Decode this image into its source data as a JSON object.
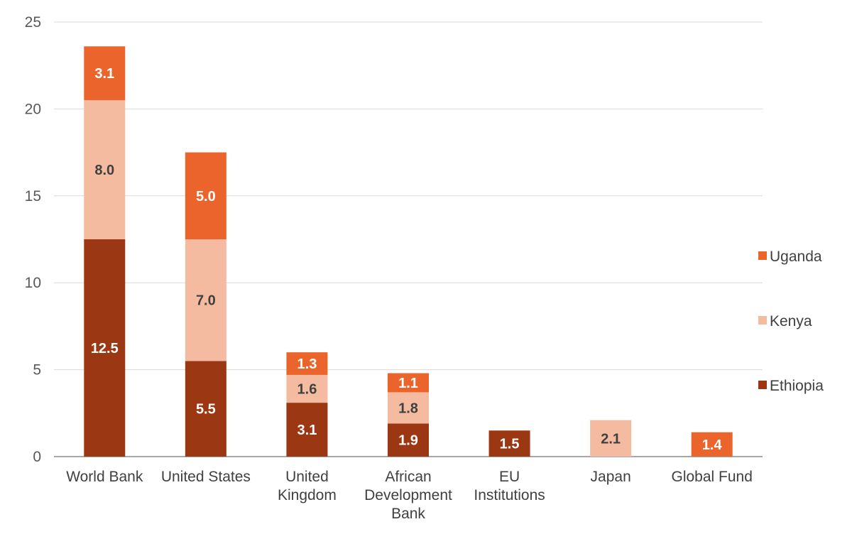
{
  "chart_data": {
    "type": "bar",
    "stacked": true,
    "title": "",
    "xlabel": "",
    "ylabel": "",
    "ylim": [
      0,
      25
    ],
    "yticks": [
      0,
      5,
      10,
      15,
      20,
      25
    ],
    "grid": true,
    "legend_position": "right",
    "categories": [
      [
        "World Bank"
      ],
      [
        "United States"
      ],
      [
        "United",
        "Kingdom"
      ],
      [
        "African",
        "Development",
        "Bank"
      ],
      [
        "EU",
        "Institutions"
      ],
      [
        "Japan"
      ],
      [
        "Global Fund"
      ]
    ],
    "series": [
      {
        "name": "Ethiopia",
        "color": "#9C3713",
        "label_color": "#ffffff",
        "values": [
          12.5,
          5.5,
          3.1,
          1.9,
          1.5,
          null,
          null
        ]
      },
      {
        "name": "Kenya",
        "color": "#F5BBA0",
        "label_color": "#404040",
        "values": [
          8.0,
          7.0,
          1.6,
          1.8,
          null,
          2.1,
          null
        ]
      },
      {
        "name": "Uganda",
        "color": "#EB642C",
        "label_color": "#ffffff",
        "values": [
          3.1,
          5.0,
          1.3,
          1.1,
          null,
          null,
          1.4
        ]
      }
    ],
    "legend_order": [
      "Uganda",
      "Kenya",
      "Ethiopia"
    ]
  }
}
